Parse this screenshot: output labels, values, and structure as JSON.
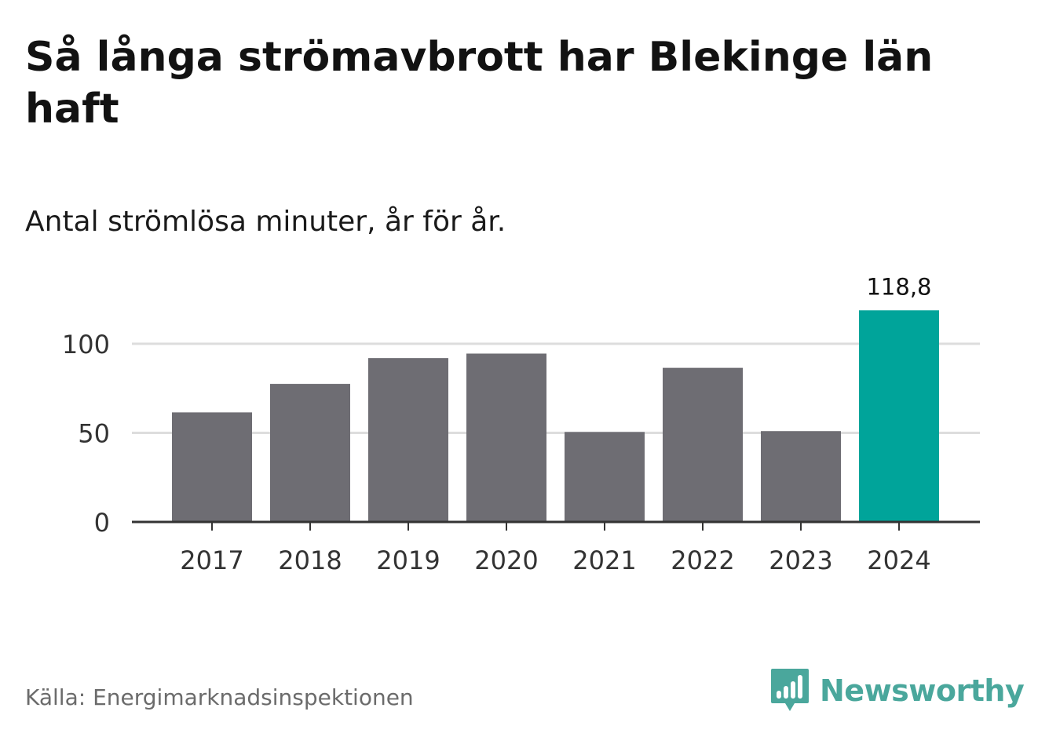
{
  "header": {
    "title": "Så långa strömavbrott har Blekinge län haft",
    "subtitle": "Antal strömlösa minuter, år för år."
  },
  "chart_data": {
    "type": "bar",
    "categories": [
      "2017",
      "2018",
      "2019",
      "2020",
      "2021",
      "2022",
      "2023",
      "2024"
    ],
    "values": [
      61.5,
      77.5,
      92,
      94.5,
      50.5,
      86.5,
      51,
      118.8
    ],
    "highlight_index": 7,
    "highlight_label": "118,8",
    "ylim": [
      0,
      120
    ],
    "yticks": [
      0,
      50,
      100
    ],
    "ytick_labels": [
      "0",
      "50",
      "100"
    ],
    "xlabel": "",
    "ylabel": "",
    "grid": true
  },
  "colors": {
    "bar": "#6e6d73",
    "highlight": "#00a49a",
    "grid": "#dddddd",
    "axis": "#333333"
  },
  "footer": {
    "source": "Källa: Energimarknadsinspektionen",
    "brand": "Newsworthy",
    "brand_icon": "bar-chart-speech-bubble-icon"
  }
}
